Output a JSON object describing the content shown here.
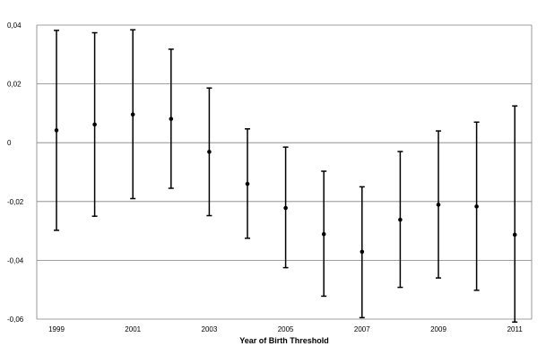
{
  "chart_data": {
    "type": "scatter",
    "subtype": "point-with-error-bars",
    "title": "",
    "xlabel": "Year of Birth Threshold",
    "ylabel": "",
    "x": [
      1999,
      2000,
      2001,
      2002,
      2003,
      2004,
      2005,
      2006,
      2007,
      2008,
      2009,
      2010,
      2011
    ],
    "series": [
      {
        "estimate": [
          0.0042,
          0.0062,
          0.0096,
          0.0081,
          -0.0031,
          -0.014,
          -0.0222,
          -0.0311,
          -0.0371,
          -0.0262,
          -0.0211,
          -0.0217,
          -0.0313
        ],
        "lower": [
          -0.0298,
          -0.025,
          -0.019,
          -0.0155,
          -0.0248,
          -0.0325,
          -0.0425,
          -0.0522,
          -0.0595,
          -0.0492,
          -0.046,
          -0.0502,
          -0.061
        ],
        "upper": [
          0.0382,
          0.0374,
          0.0384,
          0.0318,
          0.0186,
          0.0047,
          -0.0015,
          -0.0097,
          -0.015,
          -0.003,
          0.004,
          0.007,
          0.0125
        ],
        "color": "#000000"
      }
    ],
    "ylim": [
      -0.06,
      0.04
    ],
    "yticks": [
      -0.06,
      -0.04,
      -0.02,
      0,
      0.02,
      0.04
    ],
    "ytick_labels": [
      "-0,06",
      "-0,04",
      "-0,02",
      "0",
      "0,02",
      "0,04"
    ],
    "xtick_labels": [
      "1999",
      "2001",
      "2003",
      "2005",
      "2007",
      "2009",
      "2011"
    ],
    "xtick_values": [
      1999,
      2001,
      2003,
      2005,
      2007,
      2009,
      2011
    ],
    "grid": true,
    "grid_color": "#808080",
    "legend": "none"
  }
}
